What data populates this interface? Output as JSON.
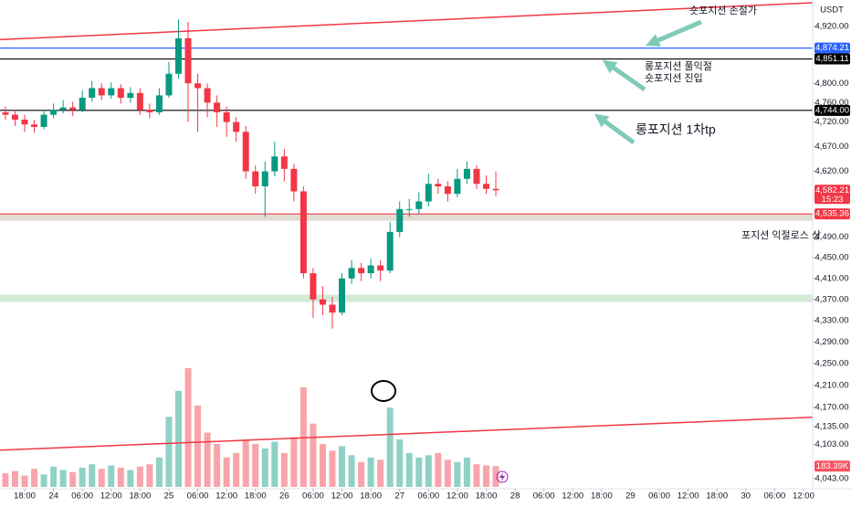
{
  "chart_data": {
    "type": "candlestick",
    "currency": "USDT",
    "log_scale": true,
    "grid": false,
    "up_color": "#089981",
    "down_color": "#f23645",
    "x": [
      -4,
      -2,
      0,
      2,
      4,
      6,
      8,
      10,
      12,
      14,
      16,
      18,
      20,
      22,
      24,
      26,
      28,
      30,
      32,
      34,
      36,
      38,
      40,
      42,
      44,
      46,
      48,
      50,
      52,
      54,
      56,
      58,
      60,
      62,
      64,
      66,
      68,
      70,
      72,
      74,
      76,
      78,
      80,
      82,
      84,
      86,
      88,
      90,
      92,
      94,
      96,
      98
    ],
    "open": [
      4740,
      4735,
      4725,
      4715,
      4710,
      4735,
      4745,
      4750,
      4745,
      4770,
      4790,
      4775,
      4790,
      4770,
      4780,
      4745,
      4740,
      4775,
      4820,
      4895,
      4800,
      4790,
      4760,
      4740,
      4720,
      4700,
      4620,
      4590,
      4620,
      4650,
      4625,
      4580,
      4420,
      4370,
      4360,
      4345,
      4410,
      4430,
      4420,
      4435,
      4425,
      4500,
      4545,
      4545,
      4560,
      4595,
      4590,
      4575,
      4605,
      4625,
      4595,
      4585
    ],
    "high": [
      4752,
      4745,
      4735,
      4725,
      4745,
      4758,
      4765,
      4762,
      4785,
      4805,
      4800,
      4802,
      4798,
      4792,
      4790,
      4758,
      4790,
      4845,
      4935,
      4930,
      4820,
      4800,
      4775,
      4752,
      4730,
      4712,
      4632,
      4640,
      4680,
      4665,
      4635,
      4590,
      4430,
      4395,
      4375,
      4420,
      4445,
      4440,
      4448,
      4445,
      4520,
      4560,
      4565,
      4578,
      4615,
      4605,
      4600,
      4625,
      4640,
      4632,
      4612,
      4620
    ],
    "low": [
      4725,
      4712,
      4700,
      4698,
      4705,
      4728,
      4738,
      4732,
      4740,
      4762,
      4765,
      4768,
      4758,
      4760,
      4735,
      4728,
      4735,
      4770,
      4810,
      4720,
      4700,
      4730,
      4710,
      4690,
      4680,
      4605,
      4575,
      4530,
      4610,
      4600,
      4560,
      4410,
      4335,
      4340,
      4315,
      4340,
      4400,
      4405,
      4410,
      4405,
      4420,
      4490,
      4530,
      4535,
      4550,
      4575,
      4560,
      4568,
      4595,
      4585,
      4575,
      4570
    ],
    "close": [
      4735,
      4725,
      4715,
      4710,
      4735,
      4745,
      4750,
      4745,
      4770,
      4790,
      4775,
      4790,
      4770,
      4780,
      4745,
      4740,
      4775,
      4820,
      4895,
      4800,
      4790,
      4760,
      4740,
      4720,
      4700,
      4620,
      4590,
      4620,
      4650,
      4625,
      4580,
      4420,
      4370,
      4360,
      4345,
      4410,
      4430,
      4420,
      4435,
      4425,
      4500,
      4545,
      4545,
      4560,
      4595,
      4590,
      4575,
      4605,
      4625,
      4595,
      4585,
      4582.21
    ],
    "volume": [
      120,
      140,
      100,
      160,
      110,
      180,
      150,
      130,
      170,
      200,
      160,
      190,
      170,
      150,
      180,
      200,
      260,
      620,
      850,
      1050,
      720,
      480,
      380,
      260,
      300,
      420,
      380,
      340,
      400,
      300,
      440,
      880,
      560,
      380,
      320,
      360,
      280,
      220,
      260,
      240,
      700,
      420,
      300,
      260,
      280,
      300,
      240,
      220,
      260,
      200,
      190,
      183.39
    ],
    "volume_last_label": "183.39K",
    "last_price_label": "4,582.21",
    "countdown": "15:23",
    "xlim": [
      -5.13,
      163.9
    ],
    "ylim": [
      4025,
      4977
    ],
    "yticks": [
      {
        "value": 4920,
        "label": "4,920.00"
      },
      {
        "value": 4800,
        "label": "4,800.00"
      },
      {
        "value": 4760,
        "label": "4,760.00"
      },
      {
        "value": 4720,
        "label": "4,720.00"
      },
      {
        "value": 4670,
        "label": "4,670.00"
      },
      {
        "value": 4620,
        "label": "4,620.00"
      },
      {
        "value": 4490,
        "label": "4,490.00"
      },
      {
        "value": 4450,
        "label": "4,450.00"
      },
      {
        "value": 4410,
        "label": "4,410.00"
      },
      {
        "value": 4370,
        "label": "4,370.00"
      },
      {
        "value": 4330,
        "label": "4,330.00"
      },
      {
        "value": 4290,
        "label": "4,290.00"
      },
      {
        "value": 4250,
        "label": "4,250.00"
      },
      {
        "value": 4210,
        "label": "4,210.00"
      },
      {
        "value": 4170,
        "label": "4,170.00"
      },
      {
        "value": 4135,
        "label": "4,135.00"
      },
      {
        "value": 4103,
        "label": "4,103.00"
      },
      {
        "value": 4043,
        "label": "4,043.00"
      }
    ],
    "xticks": [
      {
        "value": 0,
        "label": "18:00"
      },
      {
        "value": 6,
        "label": "24"
      },
      {
        "value": 12,
        "label": "06:00"
      },
      {
        "value": 18,
        "label": "12:00"
      },
      {
        "value": 24,
        "label": "18:00"
      },
      {
        "value": 30,
        "label": "25"
      },
      {
        "value": 36,
        "label": "06:00"
      },
      {
        "value": 42,
        "label": "12:00"
      },
      {
        "value": 48,
        "label": "18:00"
      },
      {
        "value": 54,
        "label": "26"
      },
      {
        "value": 60,
        "label": "06:00"
      },
      {
        "value": 66,
        "label": "12:00"
      },
      {
        "value": 72,
        "label": "18:00"
      },
      {
        "value": 78,
        "label": "27"
      },
      {
        "value": 84,
        "label": "06:00"
      },
      {
        "value": 90,
        "label": "12:00"
      },
      {
        "value": 96,
        "label": "18:00"
      },
      {
        "value": 102,
        "label": "28"
      },
      {
        "value": 108,
        "label": "06:00"
      },
      {
        "value": 114,
        "label": "12:00"
      },
      {
        "value": 120,
        "label": "18:00"
      },
      {
        "value": 126,
        "label": "29"
      },
      {
        "value": 132,
        "label": "06:00"
      },
      {
        "value": 138,
        "label": "12:00"
      },
      {
        "value": 144,
        "label": "18:00"
      },
      {
        "value": 150,
        "label": "30"
      },
      {
        "value": 156,
        "label": "06:00"
      },
      {
        "value": 162,
        "label": "12:00"
      }
    ],
    "price_lines": [
      {
        "value": 4874.21,
        "label": "4,874.21",
        "color": "#2962ff"
      },
      {
        "value": 4851.11,
        "label": "4,851.11",
        "color": "#000000"
      },
      {
        "value": 4744,
        "label": "4,744.00",
        "color": "#000000"
      },
      {
        "value": 4535.36,
        "label": "4,535.36",
        "color": "#f23645"
      }
    ],
    "zones": [
      {
        "from": 4522,
        "to": 4535.36,
        "color": "#d9d3c7"
      },
      {
        "from": 4365,
        "to": 4379,
        "color": "#c8e6c9"
      }
    ],
    "trendlines": [
      {
        "points": [
          [
            -5.13,
            4892
          ],
          [
            163.9,
            4971
          ]
        ],
        "color": "#f23645"
      },
      {
        "points": [
          [
            -5.13,
            4093
          ],
          [
            163.9,
            4152
          ]
        ],
        "color": "#f23645"
      }
    ],
    "annotations": [
      "숏포지션 손절가",
      "롱포지션 풀익절",
      "숏포지션 진입",
      "롱포지션 1차tp",
      "포지션 익절로스 상"
    ]
  }
}
